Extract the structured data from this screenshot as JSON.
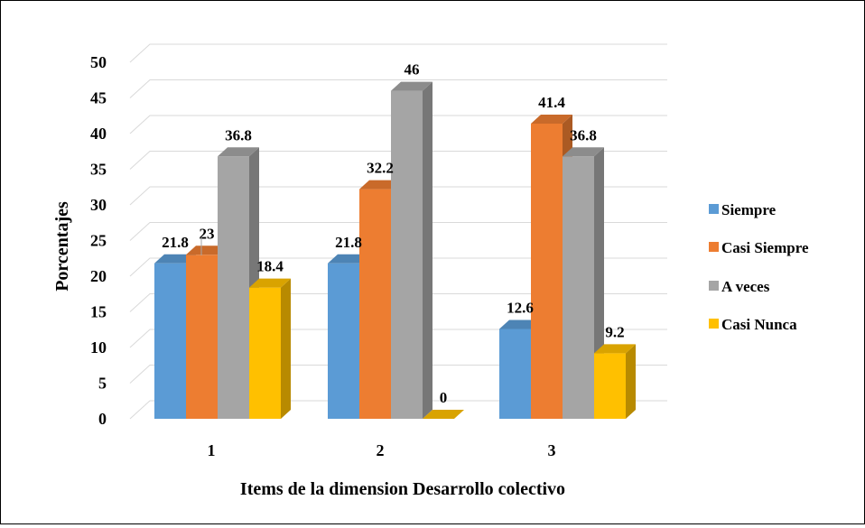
{
  "chart_data": {
    "type": "bar",
    "style": "3d-clustered-column",
    "categories": [
      "1",
      "2",
      "3"
    ],
    "series": [
      {
        "name": "Siempre",
        "values": [
          21.8,
          21.8,
          12.6
        ],
        "color": "#5B9BD5"
      },
      {
        "name": "Casi Siempre",
        "values": [
          23,
          32.2,
          41.4
        ],
        "color": "#ED7D31"
      },
      {
        "name": "A veces",
        "values": [
          36.8,
          46,
          36.8
        ],
        "color": "#A5A5A5"
      },
      {
        "name": "Casi Nunca",
        "values": [
          18.4,
          0,
          9.2
        ],
        "color": "#FFC000"
      }
    ],
    "data_labels": [
      [
        "21.8",
        "21.8",
        "12.6"
      ],
      [
        "23",
        "32.2",
        "41.4"
      ],
      [
        "36.8",
        "46",
        "36.8"
      ],
      [
        "18.4",
        "0",
        "9.2"
      ]
    ],
    "xlabel": "Items de la dimension Desarrollo colectivo",
    "ylabel": "Porcentajes",
    "ylim": [
      0,
      50
    ],
    "yticks": [
      "0",
      "5",
      "10",
      "15",
      "20",
      "25",
      "30",
      "35",
      "40",
      "45",
      "50"
    ],
    "grid": true,
    "legend": "right"
  }
}
